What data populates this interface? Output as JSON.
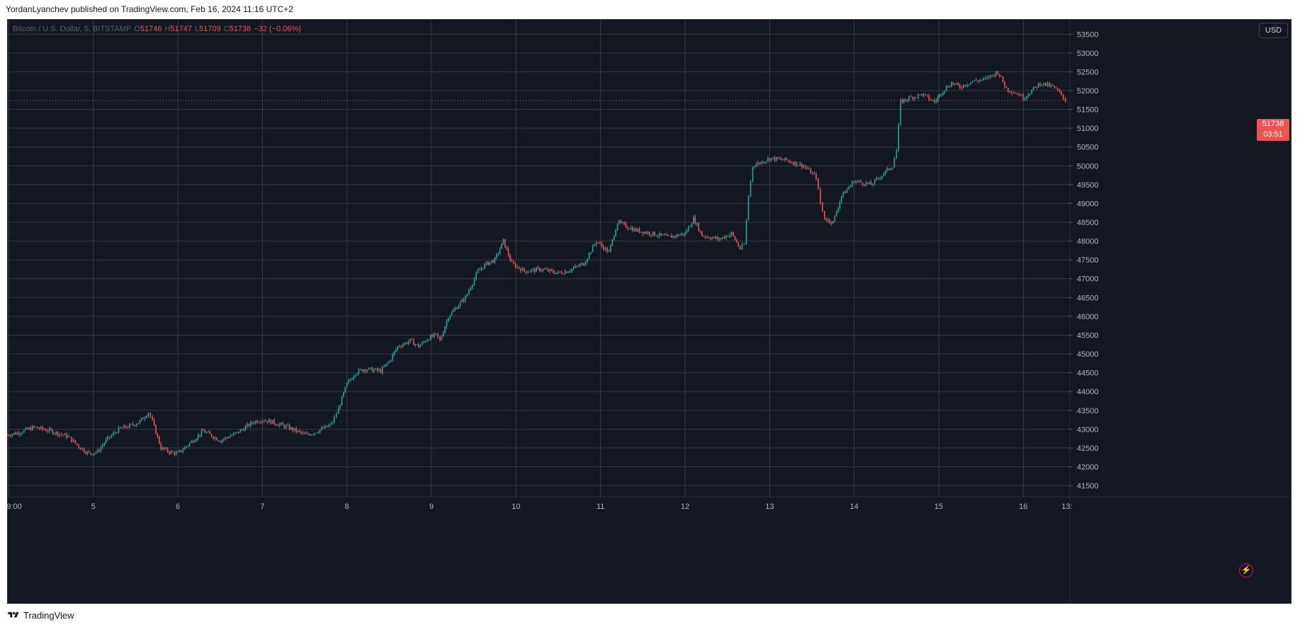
{
  "header": {
    "text": "YordanLyanchev published on TradingView.com, Feb 16, 2024 11:16 UTC+2"
  },
  "footer": {
    "brand": "TradingView"
  },
  "legend": {
    "symbol": "Bitcoin / U.S. Dollar, 5, BITSTAMP",
    "o_label": "O",
    "o_value": "51746",
    "h_label": "H",
    "h_value": "51747",
    "l_label": "L",
    "l_value": "51709",
    "c_label": "C",
    "c_value": "51738",
    "change": "−32 (−0.06%)"
  },
  "currency_button": "USD",
  "last_price": {
    "price": "51738",
    "countdown": "03:51"
  },
  "icons": {
    "lightning": "lightning-icon",
    "logo": "tradingview-logo-icon"
  },
  "colors": {
    "up": "#26a69a",
    "down": "#ef5350",
    "background": "#131722",
    "grid": "#363a45"
  },
  "chart_data": {
    "type": "line",
    "title": "",
    "xlabel": "",
    "ylabel": "",
    "grid": true,
    "y_ticks": [
      41500,
      42000,
      42500,
      43000,
      43500,
      44000,
      44500,
      45000,
      45500,
      46000,
      46500,
      47000,
      47500,
      48000,
      48500,
      49000,
      49500,
      50000,
      50500,
      51000,
      51500,
      52000,
      52500,
      53000,
      53500
    ],
    "ylim": [
      41200,
      53900
    ],
    "x_ticks": [
      {
        "x": 4.0,
        "label": "9:00"
      },
      {
        "x": 5,
        "label": "5"
      },
      {
        "x": 6,
        "label": "6"
      },
      {
        "x": 7,
        "label": "7"
      },
      {
        "x": 8,
        "label": "8"
      },
      {
        "x": 9,
        "label": "9"
      },
      {
        "x": 10,
        "label": "10"
      },
      {
        "x": 11,
        "label": "11"
      },
      {
        "x": 12,
        "label": "12"
      },
      {
        "x": 13,
        "label": "13"
      },
      {
        "x": 14,
        "label": "14"
      },
      {
        "x": 15,
        "label": "15"
      },
      {
        "x": 16,
        "label": "16"
      },
      {
        "x": 16.55,
        "label": "13:"
      }
    ],
    "xlim": [
      3.98,
      16.55
    ],
    "series": [
      {
        "x": [
          3.98,
          4.1,
          4.3,
          4.5,
          4.7,
          4.85,
          4.95,
          5.05,
          5.15,
          5.3,
          5.45,
          5.55,
          5.65,
          5.7,
          5.8,
          5.9,
          6.0,
          6.1,
          6.2,
          6.3,
          6.5,
          6.7,
          6.9,
          7.0,
          7.1,
          7.3,
          7.5,
          7.6,
          7.7,
          7.8,
          7.85,
          7.9,
          8.0,
          8.1,
          8.2,
          8.4,
          8.5,
          8.6,
          8.75,
          8.85,
          8.95,
          9.05,
          9.1,
          9.2,
          9.4,
          9.55,
          9.65,
          9.75,
          9.85,
          9.95,
          10.1,
          10.3,
          10.5,
          10.6,
          10.8,
          10.95,
          11.1,
          11.2,
          11.4,
          11.6,
          11.8,
          12.0,
          12.1,
          12.2,
          12.4,
          12.55,
          12.65,
          12.7,
          12.75,
          12.8,
          12.9,
          13.0,
          13.2,
          13.4,
          13.55,
          13.6,
          13.65,
          13.75,
          13.85,
          14.0,
          14.2,
          14.35,
          14.45,
          14.5,
          14.55,
          14.65,
          14.8,
          14.95,
          15.05,
          15.15,
          15.25,
          15.4,
          15.55,
          15.7,
          15.8,
          15.95,
          16.0,
          16.1,
          16.2,
          16.35,
          16.45,
          16.5
        ],
        "y": [
          42850,
          42900,
          43050,
          42950,
          42800,
          42500,
          42350,
          42400,
          42700,
          43000,
          43100,
          43200,
          43450,
          43200,
          42500,
          42400,
          42350,
          42550,
          42750,
          42950,
          42700,
          42900,
          43200,
          43250,
          43200,
          43050,
          42850,
          42900,
          43000,
          43100,
          43300,
          43550,
          44200,
          44500,
          44600,
          44550,
          44800,
          45200,
          45350,
          45200,
          45400,
          45500,
          45350,
          46000,
          46500,
          47200,
          47400,
          47500,
          48000,
          47400,
          47200,
          47250,
          47150,
          47200,
          47400,
          48000,
          47700,
          48500,
          48300,
          48200,
          48100,
          48200,
          48600,
          48150,
          48050,
          48200,
          47800,
          47900,
          49200,
          50000,
          50100,
          50200,
          50150,
          50000,
          49700,
          49000,
          48600,
          48500,
          49200,
          49600,
          49500,
          49800,
          50000,
          50400,
          51700,
          51800,
          51900,
          51700,
          52000,
          52200,
          52100,
          52250,
          52300,
          52500,
          52050,
          51900,
          51800,
          52000,
          52200,
          52100,
          51900,
          51738
        ]
      }
    ]
  }
}
